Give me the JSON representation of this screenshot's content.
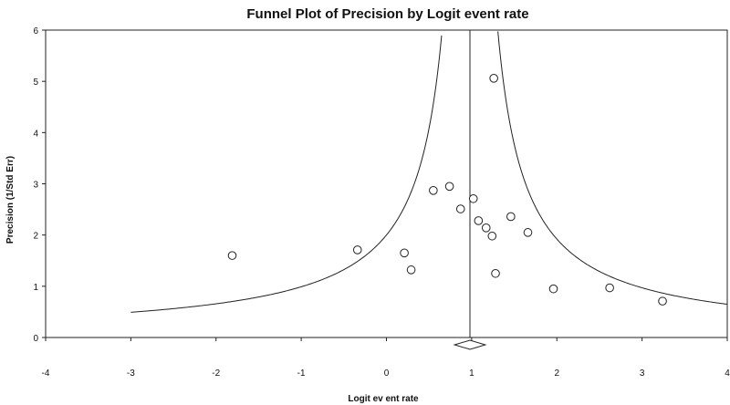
{
  "chart_data": {
    "type": "scatter",
    "title": "Funnel Plot of Precision by Logit event rate",
    "xlabel": "Logit ev ent rate",
    "ylabel": "Precision (1/Std Err)",
    "xlim": [
      -4,
      4
    ],
    "ylim": [
      0,
      6
    ],
    "x_ticks": [
      "-4",
      "-3",
      "-2",
      "-1",
      "0",
      "1",
      "2",
      "3",
      "4"
    ],
    "y_ticks": [
      "0",
      "1",
      "2",
      "3",
      "4",
      "5",
      "6"
    ],
    "grid": false,
    "legend": "none",
    "points": [
      {
        "x": -1.81,
        "y": 1.6
      },
      {
        "x": -0.34,
        "y": 1.71
      },
      {
        "x": 0.21,
        "y": 1.65
      },
      {
        "x": 0.29,
        "y": 1.32
      },
      {
        "x": 0.55,
        "y": 2.87
      },
      {
        "x": 0.74,
        "y": 2.95
      },
      {
        "x": 0.87,
        "y": 2.51
      },
      {
        "x": 1.02,
        "y": 2.71
      },
      {
        "x": 1.08,
        "y": 2.28
      },
      {
        "x": 1.17,
        "y": 2.14
      },
      {
        "x": 1.24,
        "y": 1.98
      },
      {
        "x": 1.26,
        "y": 5.06
      },
      {
        "x": 1.28,
        "y": 1.25
      },
      {
        "x": 1.46,
        "y": 2.36
      },
      {
        "x": 1.66,
        "y": 2.05
      },
      {
        "x": 1.96,
        "y": 0.95
      },
      {
        "x": 2.62,
        "y": 0.97
      },
      {
        "x": 3.24,
        "y": 0.71
      }
    ],
    "combined_estimate": 0.98,
    "combined_ci": [
      0.8,
      1.16
    ],
    "funnel_z": 1.96,
    "funnel_x_range": [
      -3,
      4
    ]
  },
  "colors": {
    "line": "#222222",
    "marker_stroke": "#222222",
    "marker_fill": "#ffffff"
  }
}
